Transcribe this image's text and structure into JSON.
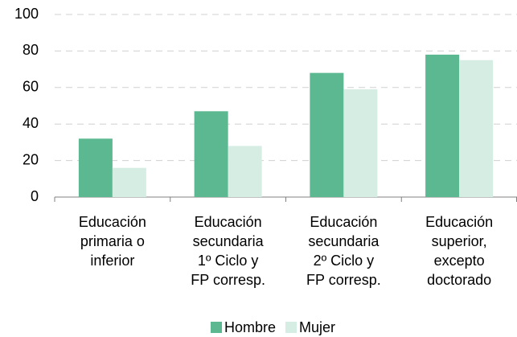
{
  "chart_data": {
    "type": "bar",
    "categories": [
      [
        "Educación",
        "primaria o",
        "inferior"
      ],
      [
        "Educación",
        "secundaria",
        "1º Ciclo y",
        "FP corresp."
      ],
      [
        "Educación",
        "secundaria",
        "2º Ciclo y",
        "FP corresp."
      ],
      [
        "Educación",
        "superior,",
        "excepto",
        "doctorado"
      ]
    ],
    "series": [
      {
        "name": "Hombre",
        "color": "#5cb891",
        "values": [
          32,
          47,
          68,
          78
        ]
      },
      {
        "name": "Mujer",
        "color": "#d5ede3",
        "values": [
          16,
          28,
          59,
          75
        ]
      }
    ],
    "ylim": [
      0,
      100
    ],
    "yticks": [
      0,
      20,
      40,
      60,
      80,
      100
    ],
    "grid": true,
    "legend": "bottom"
  }
}
